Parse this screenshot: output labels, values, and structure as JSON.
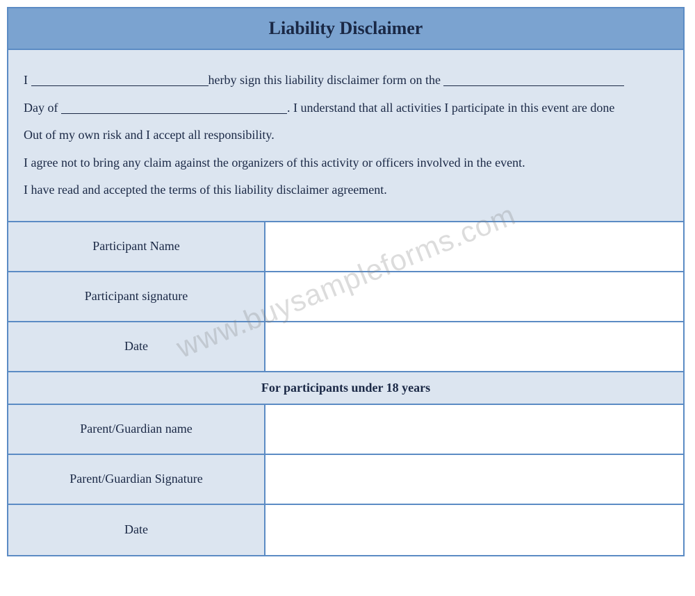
{
  "header": {
    "title": "Liability Disclaimer"
  },
  "disclaimer": {
    "line1_prefix": "I ",
    "line1_mid": "herby sign this liability disclaimer form on the ",
    "line2_prefix": "Day of ",
    "line2_suffix": ". I understand that all activities I participate in this event are done",
    "line3": "Out of my own risk and I accept all responsibility.",
    "line4": "I agree not to bring any claim against the organizers of this activity or officers involved in the event.",
    "line5": "I have read and accepted the terms of this liability disclaimer agreement."
  },
  "rows_top": [
    {
      "label": "Participant Name"
    },
    {
      "label": "Participant signature"
    },
    {
      "label": "Date"
    }
  ],
  "subheader": "For participants under 18 years",
  "rows_bottom": [
    {
      "label": "Parent/Guardian name"
    },
    {
      "label": "Parent/Guardian Signature"
    },
    {
      "label": "Date"
    }
  ],
  "watermark": "www.buysampleforms.com",
  "colors": {
    "border": "#5b8bc4",
    "header_bg": "#7ba3d0",
    "section_bg": "#dce5f0",
    "input_bg": "#ffffff",
    "text": "#1a2845"
  }
}
